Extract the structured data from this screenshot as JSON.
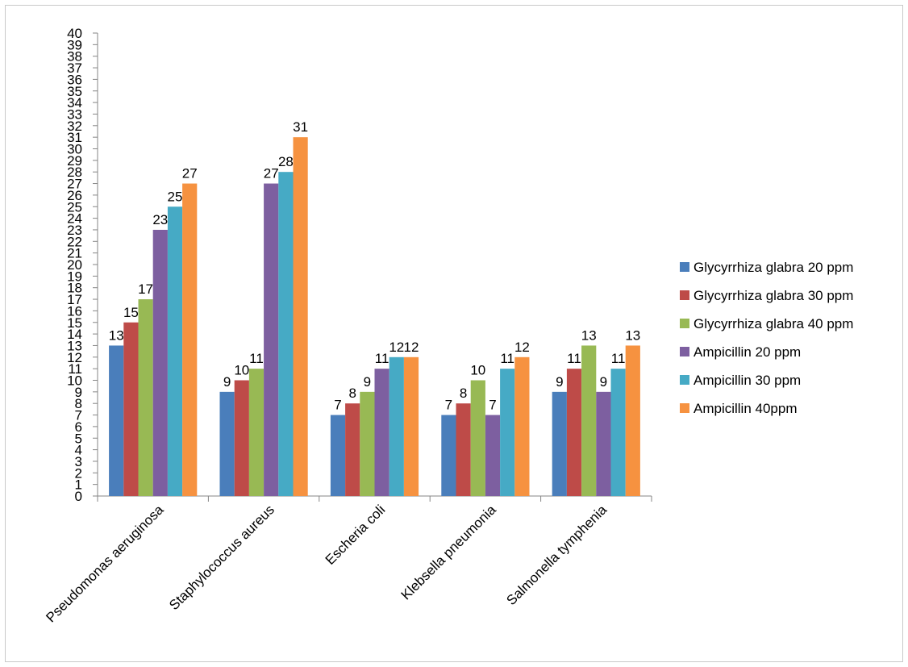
{
  "chart_data": {
    "type": "bar",
    "title": "",
    "xlabel": "",
    "ylabel": "",
    "ylim": [
      0,
      40
    ],
    "ytick_step": 1,
    "grid": false,
    "legend_position": "right",
    "categories": [
      "Pseudomonas aeruginosa",
      "Staphylococcus aureus",
      "Escheria coli",
      "Klebsella pneumonia",
      "Salmonella tymphenia"
    ],
    "series": [
      {
        "name": "Glycyrrhiza glabra 20 ppm",
        "color": "#4a7ebb",
        "values": [
          13,
          9,
          7,
          7,
          9
        ]
      },
      {
        "name": "Glycyrrhiza glabra 30 ppm",
        "color": "#be4b48",
        "values": [
          15,
          10,
          8,
          8,
          11
        ]
      },
      {
        "name": "Glycyrrhiza glabra 40 ppm",
        "color": "#98b954",
        "values": [
          17,
          11,
          9,
          10,
          13
        ]
      },
      {
        "name": "Ampicillin 20 ppm",
        "color": "#7d5fa0",
        "values": [
          23,
          27,
          11,
          7,
          9
        ]
      },
      {
        "name": "Ampicillin 30 ppm",
        "color": "#46aac5",
        "values": [
          25,
          28,
          12,
          11,
          11
        ]
      },
      {
        "name": "Ampicillin 40ppm",
        "color": "#f69240",
        "values": [
          27,
          31,
          12,
          12,
          13
        ]
      }
    ]
  }
}
